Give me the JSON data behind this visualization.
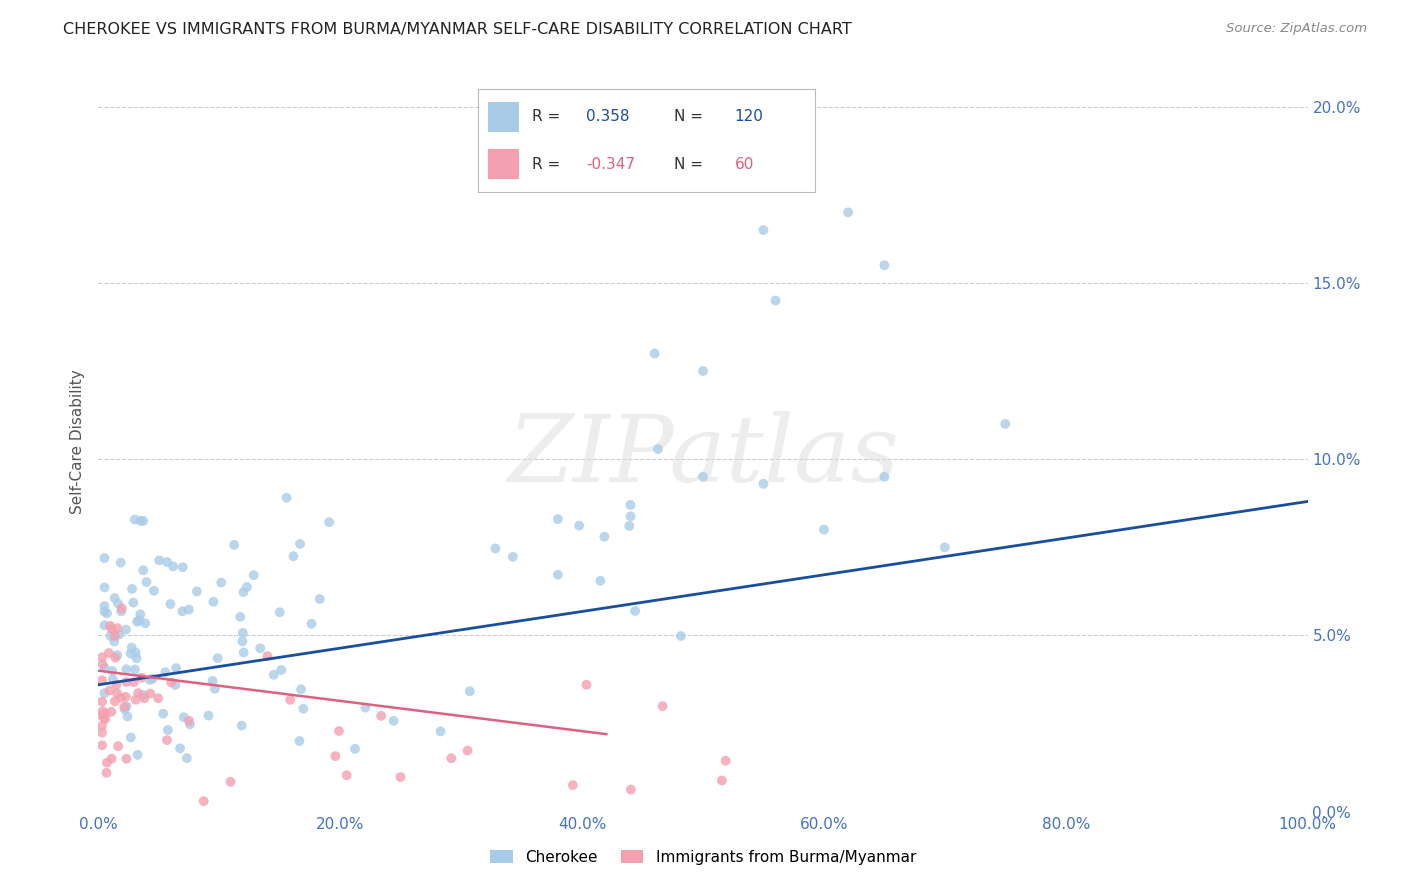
{
  "title": "CHEROKEE VS IMMIGRANTS FROM BURMA/MYANMAR SELF-CARE DISABILITY CORRELATION CHART",
  "source": "Source: ZipAtlas.com",
  "ylabel": "Self-Care Disability",
  "blue_color": "#A8CCE8",
  "pink_color": "#F4A0B0",
  "blue_line_color": "#1A4FA0",
  "pink_line_color": "#E06080",
  "watermark_text": "ZIPatlas",
  "background_color": "#FFFFFF",
  "grid_color": "#CCCCCC",
  "title_color": "#222222",
  "tick_color": "#4472C4",
  "legend_border_color": "#BBBBBB",
  "xlim": [
    0.0,
    1.0
  ],
  "ylim": [
    0.0,
    0.21
  ],
  "xticks": [
    0.0,
    0.2,
    0.4,
    0.6,
    0.8,
    1.0
  ],
  "xticklabels": [
    "0.0%",
    "20.0%",
    "40.0%",
    "60.0%",
    "80.0%",
    "100.0%"
  ],
  "yticks": [
    0.0,
    0.05,
    0.1,
    0.15,
    0.2
  ],
  "yticklabels": [
    "0.0%",
    "5.0%",
    "10.0%",
    "15.0%",
    "20.0%"
  ],
  "blue_R": 0.358,
  "blue_N": 120,
  "pink_R": -0.347,
  "pink_N": 60,
  "blue_trend_x": [
    0.0,
    1.0
  ],
  "blue_trend_y": [
    0.036,
    0.088
  ],
  "pink_trend_x": [
    0.0,
    0.42
  ],
  "pink_trend_y": [
    0.04,
    0.022
  ]
}
